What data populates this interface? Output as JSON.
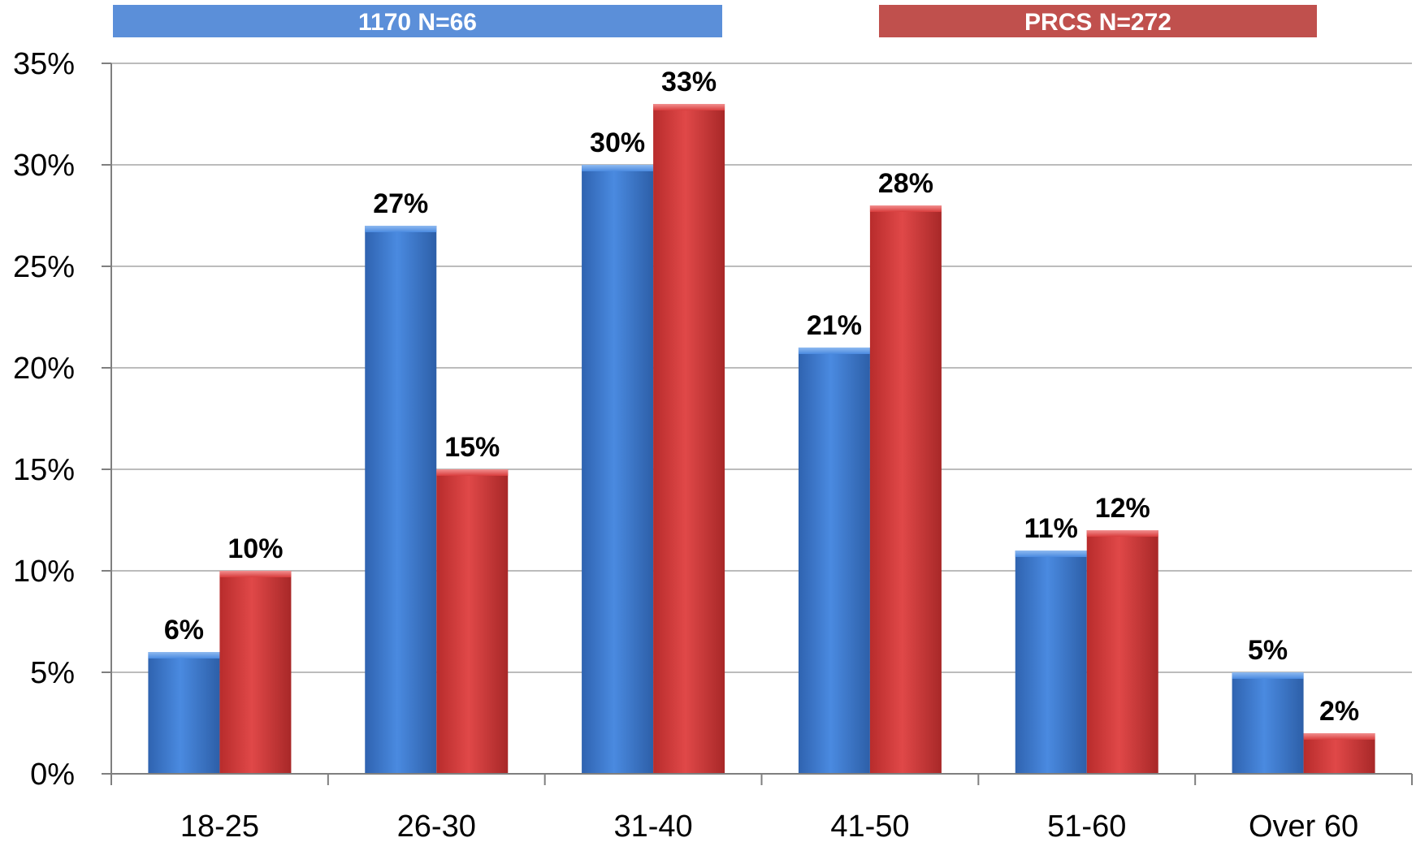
{
  "chart_data": {
    "type": "bar",
    "categories": [
      "18-25",
      "26-30",
      "31-40",
      "41-50",
      "51-60",
      "Over 60"
    ],
    "series": [
      {
        "name": "1170 N=66",
        "values": [
          6,
          27,
          30,
          21,
          11,
          5
        ],
        "labels": [
          "6%",
          "27%",
          "30%",
          "21%",
          "11%",
          "5%"
        ],
        "color": "#3f7fd3"
      },
      {
        "name": "PRCS N=272",
        "values": [
          10,
          15,
          33,
          28,
          12,
          2
        ],
        "labels": [
          "10%",
          "15%",
          "33%",
          "28%",
          "12%",
          "2%"
        ],
        "color": "#d83c3c"
      }
    ],
    "ylim": [
      0,
      35
    ],
    "yticks": [
      0,
      5,
      10,
      15,
      20,
      25,
      30,
      35
    ],
    "ytick_labels": [
      "0%",
      "5%",
      "10%",
      "15%",
      "20%",
      "25%",
      "30%",
      "35%"
    ],
    "grid": true,
    "legend_placement": "top",
    "legend_colors": [
      "#5b8fd9",
      "#c0504d"
    ]
  }
}
